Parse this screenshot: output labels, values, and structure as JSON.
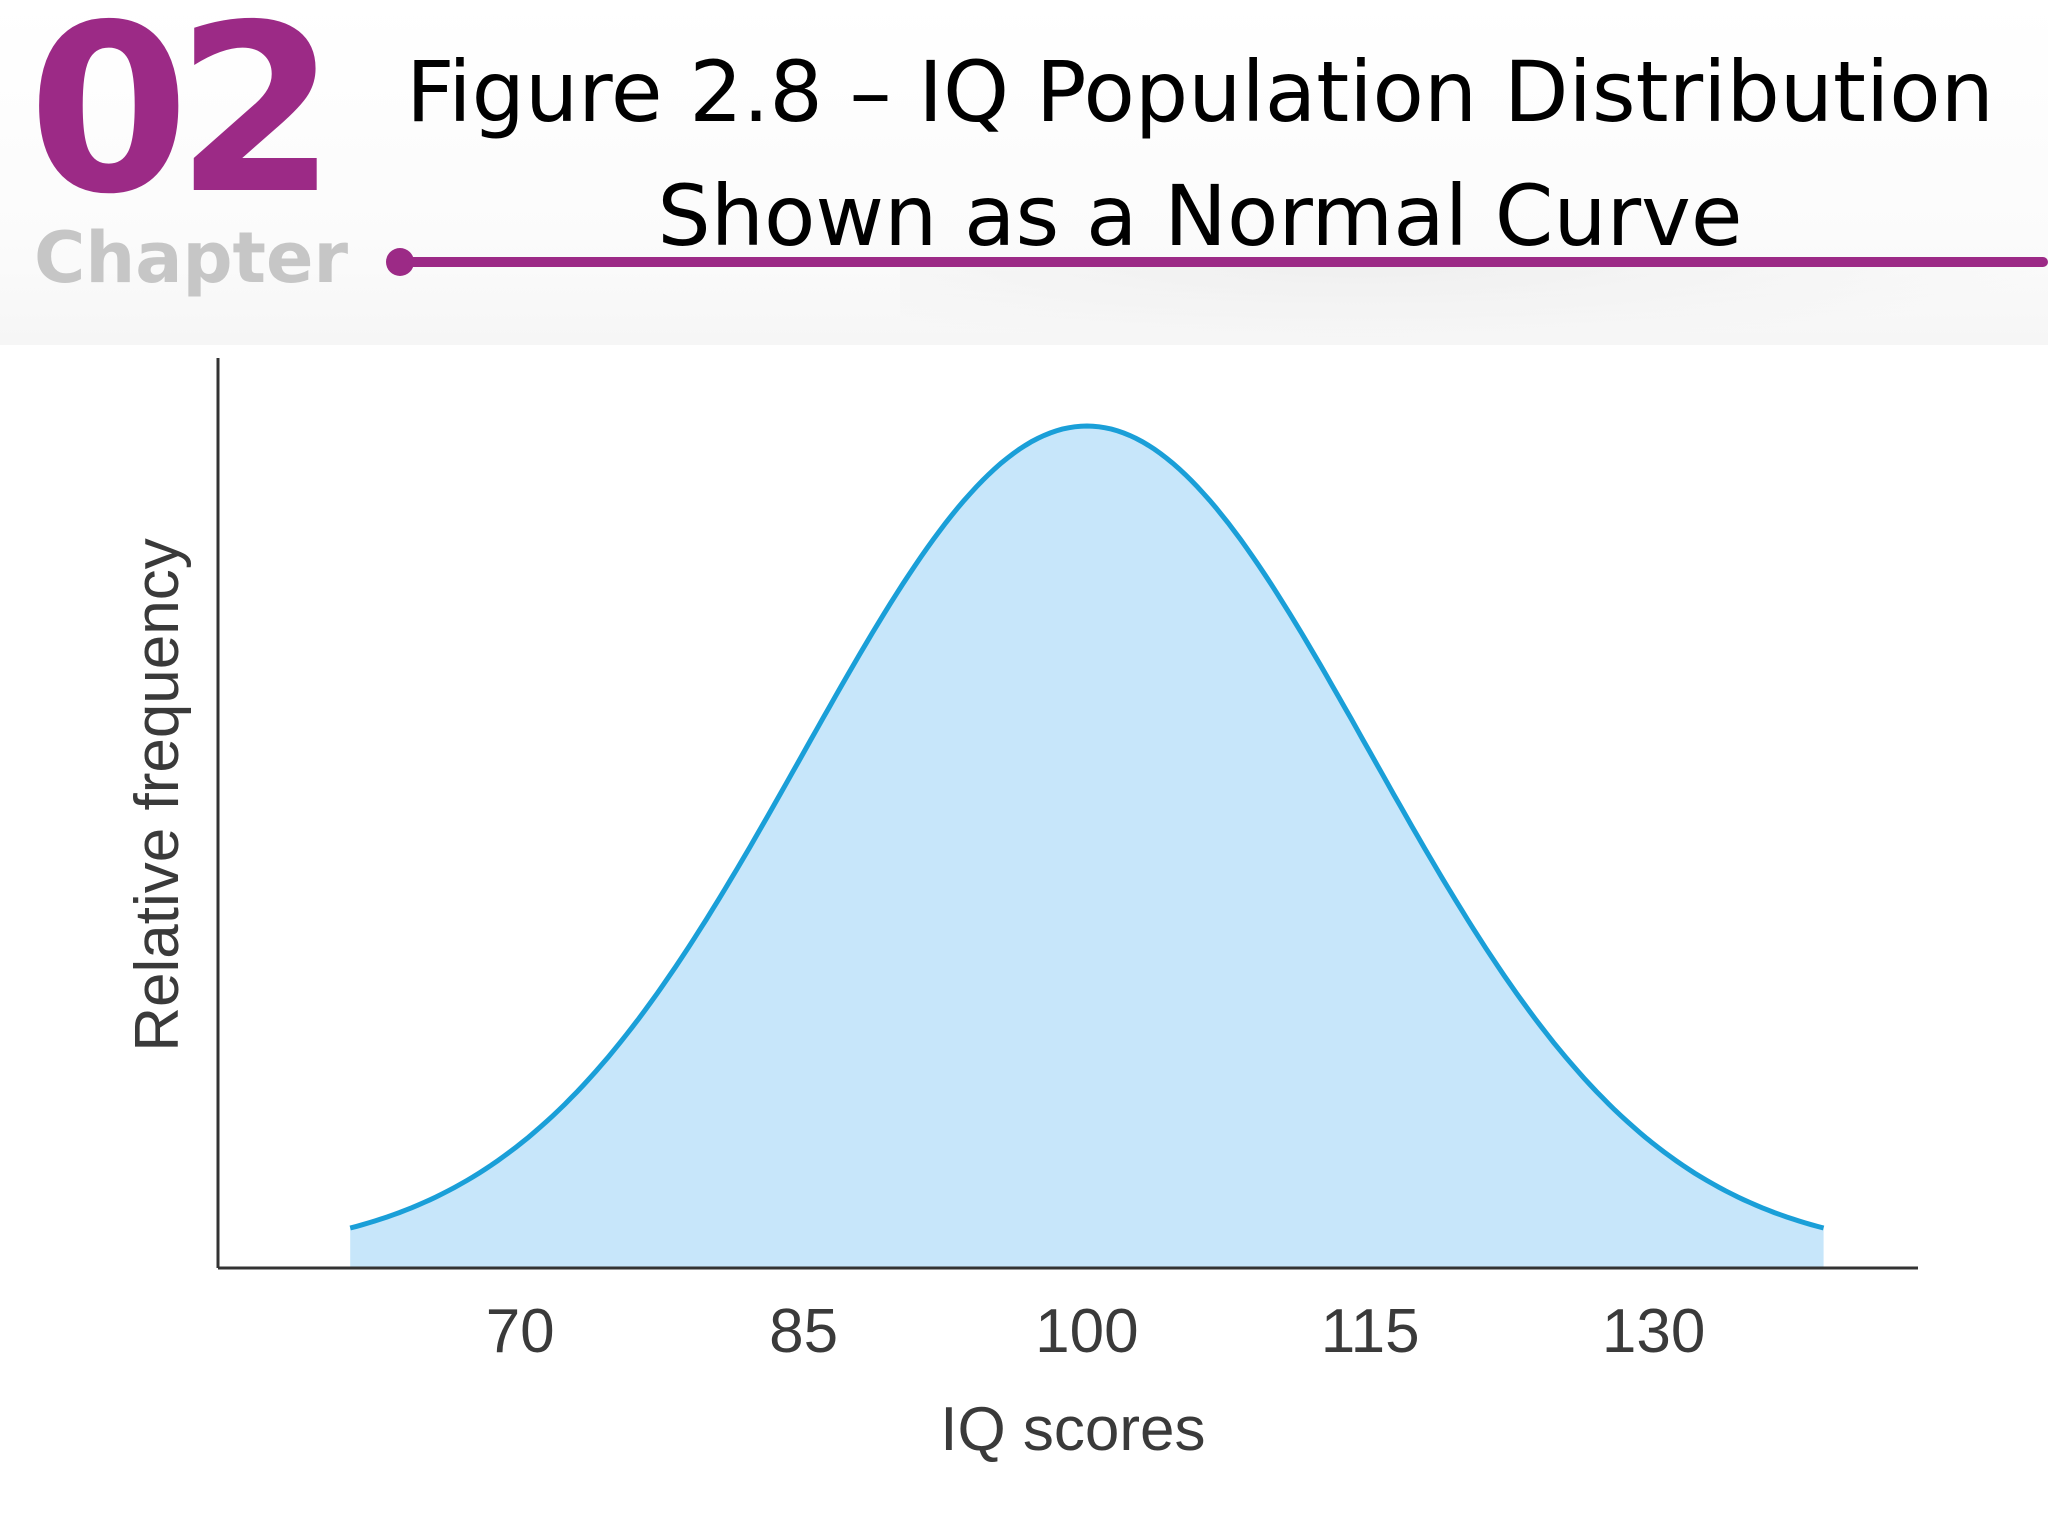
{
  "header": {
    "chapter_number": "02",
    "chapter_word": "Chapter",
    "title_line1": "Figure 2.8 – IQ Population Distribution",
    "title_line2": "Shown as a Normal Curve",
    "accent_color": "#9c2a86"
  },
  "chart_data": {
    "type": "area",
    "distribution": "normal",
    "mean": 100,
    "sd": 15,
    "x_range": [
      61,
      139
    ],
    "xlim": [
      54,
      144
    ],
    "x_ticks": [
      70,
      85,
      100,
      115,
      130
    ],
    "x_tick_labels": [
      "70",
      "85",
      "100",
      "115",
      "130"
    ],
    "xlabel": "IQ scores",
    "ylabel": "Relative frequency",
    "grid": false,
    "legend": "none",
    "line_color": "#1a9fd8",
    "fill_color": "#c7e6fa"
  }
}
